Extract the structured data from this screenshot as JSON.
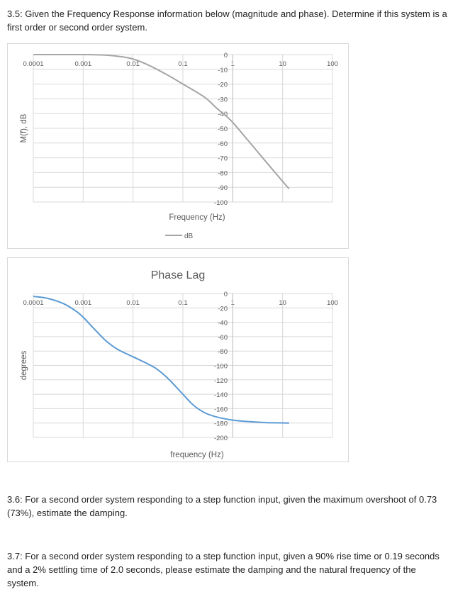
{
  "questions": {
    "q35": "3.5: Given the Frequency Response information below (magnitude and phase). Determine if this system is a first order or second order system.",
    "q36": "3.6: For a second order system responding to a step function input, given the maximum overshoot of 0.73 (73%), estimate the damping.",
    "q37": "3.7: For a second order system responding to a step function input, given a 90% rise time or 0.19 seconds and a 2% settling time of 2.0 seconds, please estimate the damping and the natural frequency of the system."
  },
  "chart_data": [
    {
      "type": "line",
      "title": "",
      "xlabel": "Frequency (Hz)",
      "ylabel": "M(f), dB",
      "x_scale": "log",
      "xlim": [
        0.0001,
        100
      ],
      "ylim": [
        -100,
        0
      ],
      "x_ticks": [
        "0.0001",
        "0.001",
        "0.01",
        "0.1",
        "1",
        "10",
        "100"
      ],
      "y_ticks": [
        "0",
        "-10",
        "-20",
        "-30",
        "-40",
        "-50",
        "-60",
        "-70",
        "-80",
        "-90",
        "-100"
      ],
      "grid": true,
      "legend": "bottom",
      "color": "#a5a5a5",
      "series": [
        {
          "name": "dB",
          "x": [
            0.0001,
            0.001,
            0.003,
            0.006,
            0.01,
            0.02,
            0.05,
            0.1,
            0.2,
            0.3,
            0.5,
            0.7,
            1,
            2,
            5,
            10,
            13.5
          ],
          "y": [
            0,
            0,
            -0.4,
            -1.5,
            -3,
            -7,
            -14,
            -20,
            -26,
            -30,
            -37,
            -41,
            -46,
            -58,
            -74,
            -86,
            -91
          ]
        }
      ]
    },
    {
      "type": "line",
      "title": "Phase Lag",
      "xlabel": "frequency (Hz)",
      "ylabel": "degrees",
      "x_scale": "log",
      "xlim": [
        0.0001,
        100
      ],
      "ylim": [
        -200,
        0
      ],
      "x_ticks": [
        "0.0001",
        "0.001",
        "0.01",
        "0.1",
        "1",
        "10",
        "100"
      ],
      "y_ticks": [
        "0",
        "-20",
        "-40",
        "-60",
        "-80",
        "-100",
        "-120",
        "-140",
        "-160",
        "-180",
        "-200"
      ],
      "grid": true,
      "legend": "none",
      "color": "#5b9bd5",
      "series": [
        {
          "x": [
            0.0001,
            0.0002,
            0.0004,
            0.0007,
            0.001,
            0.0015,
            0.002,
            0.003,
            0.005,
            0.01,
            0.02,
            0.03,
            0.05,
            0.1,
            0.15,
            0.2,
            0.3,
            0.5,
            1,
            2,
            5,
            13.5
          ],
          "y": [
            -4,
            -7,
            -14,
            -24,
            -33,
            -46,
            -55,
            -67,
            -78,
            -88,
            -98,
            -105,
            -118,
            -140,
            -153,
            -160,
            -167,
            -172,
            -176,
            -178,
            -179.5,
            -180
          ]
        }
      ]
    }
  ]
}
